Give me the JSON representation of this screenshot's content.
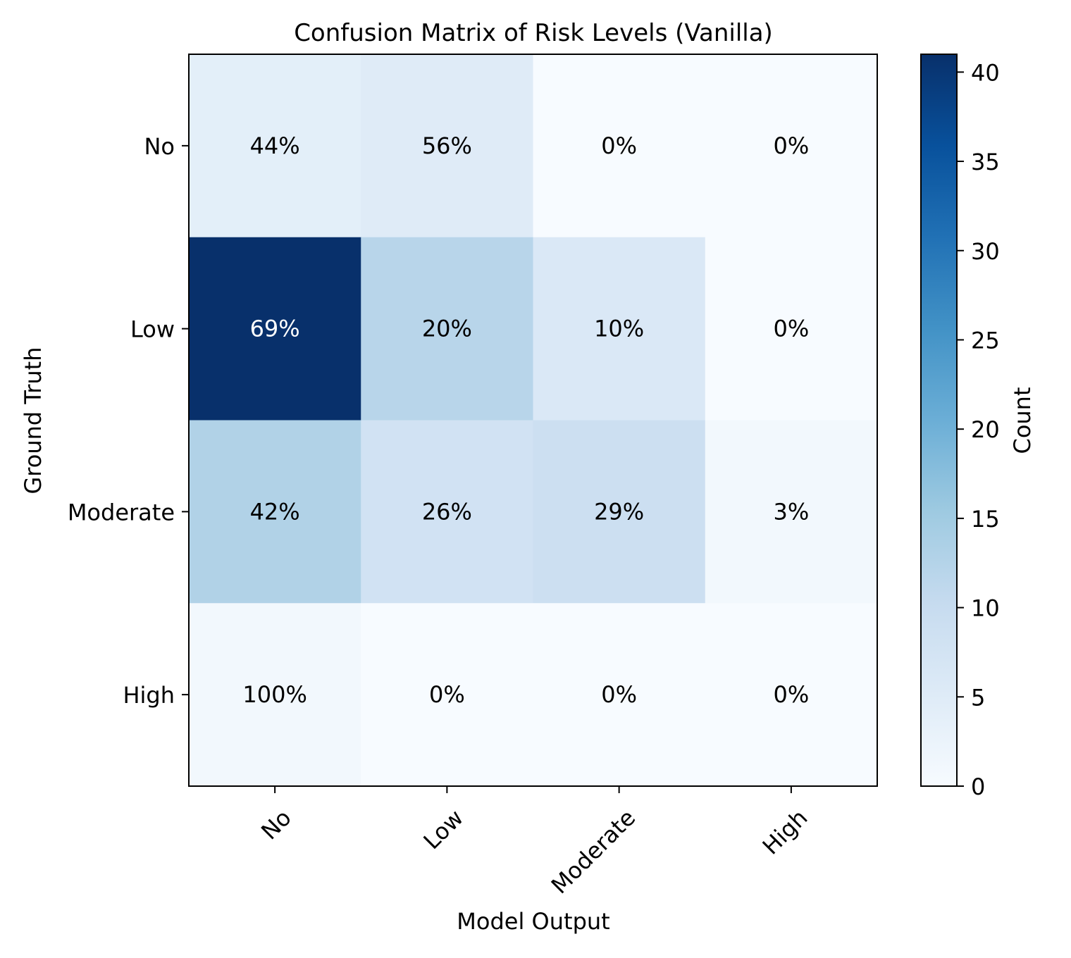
{
  "chart_data": {
    "type": "heatmap",
    "title": "Confusion Matrix of Risk Levels (Vanilla)",
    "xlabel": "Model Output",
    "ylabel": "Ground Truth",
    "x_categories": [
      "No",
      "Low",
      "Moderate",
      "High"
    ],
    "y_categories": [
      "No",
      "Low",
      "Moderate",
      "High"
    ],
    "counts": [
      [
        4,
        5,
        0,
        0
      ],
      [
        41,
        12,
        6,
        0
      ],
      [
        13,
        8,
        9,
        1
      ],
      [
        1,
        0,
        0,
        0
      ]
    ],
    "cell_labels": [
      [
        "44%",
        "56%",
        "0%",
        "0%"
      ],
      [
        "69%",
        "20%",
        "10%",
        "0%"
      ],
      [
        "42%",
        "26%",
        "29%",
        "3%"
      ],
      [
        "100%",
        "0%",
        "0%",
        "0%"
      ]
    ],
    "colorbar": {
      "label": "Count",
      "colormap": "Blues",
      "range": [
        0,
        41
      ],
      "ticks": [
        0,
        5,
        10,
        15,
        20,
        25,
        30,
        35,
        40
      ],
      "tick_labels": [
        "0",
        "5",
        "10",
        "15",
        "20",
        "25",
        "30",
        "35",
        "40"
      ]
    },
    "colors": {
      "low": "#f7fbff",
      "high": "#08306b",
      "text_dark": "#000000",
      "text_light": "#ffffff"
    }
  }
}
